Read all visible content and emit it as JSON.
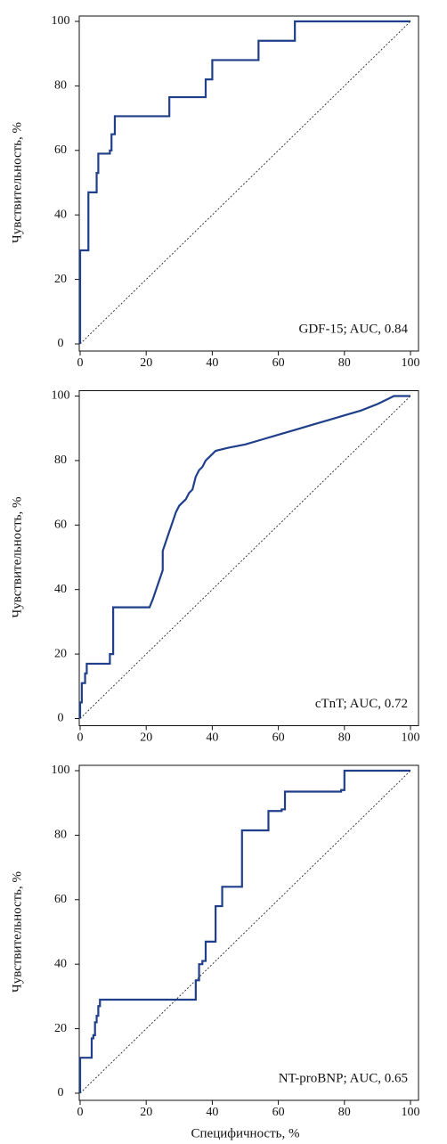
{
  "chart_data": [
    {
      "type": "line",
      "y_label": "Чувствительность, %",
      "annotation": "GDF-15; AUC, 0.84",
      "color": "#1f3f8a",
      "diagonal": true,
      "x": [
        0,
        0,
        2.5,
        2.5,
        5,
        5,
        5.5,
        5.5,
        9,
        9,
        9.5,
        9.5,
        10.5,
        10.5,
        27,
        27,
        38,
        38,
        40,
        40,
        54,
        54,
        65,
        65,
        100
      ],
      "values": [
        0,
        29,
        29,
        47,
        47,
        53,
        53,
        59,
        59,
        60,
        60,
        65,
        65,
        70.6,
        70.6,
        76.5,
        76.5,
        82,
        82,
        88,
        88,
        94,
        94,
        100,
        100
      ],
      "xlim": [
        0,
        100
      ],
      "ylim": [
        0,
        100
      ],
      "xticks": [
        0,
        20,
        40,
        60,
        80,
        100
      ],
      "yticks": [
        0,
        20,
        40,
        60,
        80,
        100
      ]
    },
    {
      "type": "line",
      "y_label": "Чувствительность, %",
      "annotation": "cTnT; AUC, 0.72",
      "color": "#1f3f8a",
      "diagonal": true,
      "x": [
        0,
        0,
        0.5,
        0.5,
        1.5,
        1.5,
        2,
        2,
        9,
        9,
        10,
        10,
        21,
        22,
        23,
        24,
        25,
        25,
        26,
        27,
        28,
        29,
        30,
        31,
        32,
        33,
        34,
        35,
        36,
        37,
        38,
        39,
        40,
        41,
        45,
        50,
        55,
        60,
        65,
        70,
        75,
        80,
        85,
        90,
        93,
        95,
        100
      ],
      "values": [
        0,
        5,
        5,
        11,
        11,
        14,
        14,
        17,
        17,
        20,
        20,
        34.5,
        34.5,
        37,
        40,
        43,
        46,
        52,
        55,
        58,
        61,
        64,
        66,
        67,
        68,
        70,
        71,
        75,
        77,
        78,
        80,
        81,
        82,
        83,
        84,
        85,
        86.5,
        88,
        89.5,
        91,
        92.5,
        94,
        95.5,
        97.5,
        99,
        100,
        100
      ],
      "xlim": [
        0,
        100
      ],
      "ylim": [
        0,
        100
      ],
      "xticks": [
        0,
        20,
        40,
        60,
        80,
        100
      ],
      "yticks": [
        0,
        20,
        40,
        60,
        80,
        100
      ]
    },
    {
      "type": "line",
      "y_label": "Чувствительность, %",
      "x_label": "Специфичность, %",
      "annotation": "NT-proBNP; AUC, 0.65",
      "color": "#1f3f8a",
      "diagonal": true,
      "x": [
        0,
        0,
        3.5,
        3.5,
        4,
        4,
        4.5,
        4.5,
        5,
        5,
        5.5,
        5.5,
        6,
        6,
        35,
        35,
        36,
        36,
        37,
        37,
        38,
        38,
        41,
        41,
        43,
        43,
        49,
        49,
        57,
        57,
        61,
        61,
        62,
        62,
        79,
        79,
        80,
        80,
        100
      ],
      "values": [
        0,
        11,
        11,
        17,
        17,
        18,
        18,
        22,
        22,
        24,
        24,
        27,
        27,
        29,
        29,
        35,
        35,
        40,
        40,
        41,
        41,
        47,
        47,
        58,
        58,
        64,
        64,
        81.5,
        81.5,
        87.5,
        87.5,
        88,
        88,
        93.5,
        93.5,
        94,
        94,
        100,
        100
      ],
      "xlim": [
        0,
        100
      ],
      "ylim": [
        0,
        100
      ],
      "xticks": [
        0,
        20,
        40,
        60,
        80,
        100
      ],
      "yticks": [
        0,
        20,
        40,
        60,
        80,
        100
      ]
    }
  ]
}
